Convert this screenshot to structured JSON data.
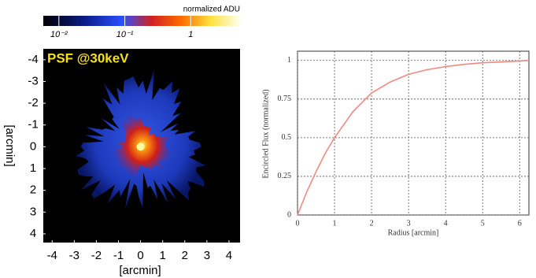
{
  "chart_data": [
    {
      "type": "image",
      "title": "PSF @30keV",
      "xlabel": "[arcmin]",
      "ylabel": "[arcmin]",
      "xlim": [
        -4.4,
        4.5
      ],
      "ylim": [
        -4.5,
        4.4
      ],
      "xticks": [
        -4,
        -3,
        -2,
        -1,
        0,
        1,
        2,
        3,
        4
      ],
      "yticks": [
        -4,
        -3,
        -2,
        -1,
        0,
        1,
        2,
        3,
        4
      ],
      "colorbar": {
        "label": "normalized ADU",
        "log": true,
        "lim": [
          0.0058,
          5.6
        ],
        "ticks": [
          {
            "value": 0.01,
            "label": "10⁻²"
          },
          {
            "value": 0.1,
            "label": "10⁻¹"
          },
          1
        ]
      }
    },
    {
      "type": "line",
      "xlabel": "Radius [arcmin]",
      "ylabel": "Encircled Flux (normalized)",
      "xlim": [
        0,
        6.25
      ],
      "ylim": [
        0,
        1.06
      ],
      "xticks": [
        0,
        1,
        2,
        3,
        4,
        5,
        6
      ],
      "yticks": [
        0,
        0.25,
        0.5,
        0.75,
        1
      ],
      "grid": true,
      "color": "#f08a80",
      "x": [
        0,
        0.25,
        0.5,
        0.75,
        1,
        1.5,
        2,
        2.5,
        3,
        3.5,
        4,
        4.5,
        5,
        5.5,
        6,
        6.25
      ],
      "values": [
        0,
        0.15,
        0.28,
        0.4,
        0.5,
        0.67,
        0.79,
        0.86,
        0.91,
        0.94,
        0.96,
        0.975,
        0.985,
        0.99,
        0.997,
        1.0
      ]
    }
  ]
}
